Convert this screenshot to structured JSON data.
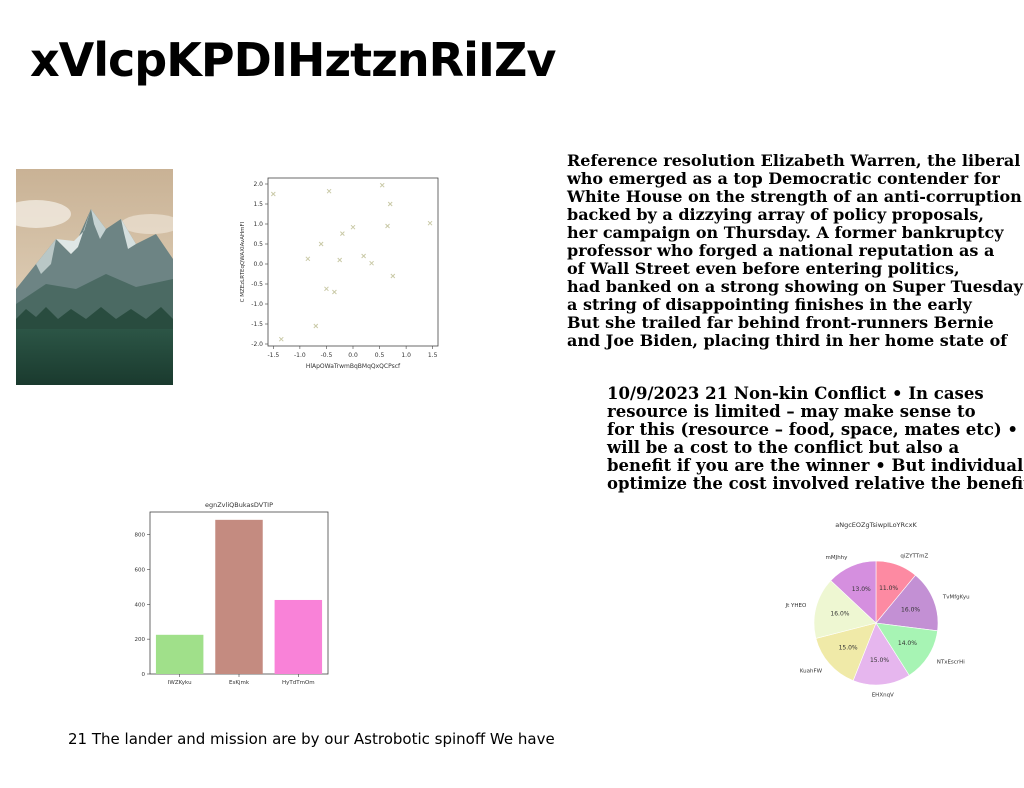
{
  "page": {
    "title": "xVlcpKPDIHztznRiIZv",
    "caption": "21 The lander and mission are by our Astrobotic spinoff We have"
  },
  "text_block_1": [
    "Reference resolution Elizabeth Warren, the liberal",
    "who emerged as a top Democratic contender for",
    "White House on the strength of an anti-corruption",
    "backed by a dizzying array of policy proposals,",
    "her campaign on Thursday. A former bankruptcy",
    "professor who forged a national reputation as a",
    "of Wall Street even before entering politics,",
    "had banked on a strong showing on Super Tuesday",
    "a string of disappointing finishes in the early",
    "But she trailed far behind front-runners Bernie",
    "and Joe Biden, placing third in her home state of"
  ],
  "text_block_2": [
    "10/9/2023 21 Non-kin Conflict • In cases",
    "resource is limited – may make sense to",
    "for this (resource – food, space, mates etc) •",
    "will be a cost to the conflict but also a",
    "benefit if you are the winner • But individuals",
    "optimize the cost involved relative the benefit"
  ],
  "colors": {
    "scatter_marker": "#c9c9a6",
    "bar_colors": [
      "#a0e08a",
      "#c48b80",
      "#f982d8"
    ],
    "pie_colors": [
      "#fd8aa2",
      "#c390d4",
      "#a7f4b4",
      "#e6b6ee",
      "#f0eaa8",
      "#eef7d2",
      "#d58fdf"
    ]
  },
  "chart_data": [
    {
      "type": "scatter",
      "title": "",
      "xlabel": "HlApOWaTrwmBqBMqQxQCPscf",
      "ylabel": "C MZEzLRTEqQWAXIAvAHmFI",
      "xlim": [
        -1.6,
        1.6
      ],
      "ylim": [
        -2.05,
        2.15
      ],
      "xticks": [
        "-1.5",
        "-1.0",
        "-0.5",
        "0.0",
        "0.5",
        "1.0",
        "1.5"
      ],
      "yticks": [
        "2.0",
        "1.5",
        "1.0",
        "0.5",
        "0.0",
        "-0.5",
        "-1.0",
        "-1.5",
        "-2.0"
      ],
      "marker": "x",
      "points": [
        {
          "x": -1.5,
          "y": 1.75
        },
        {
          "x": -0.45,
          "y": 1.82
        },
        {
          "x": 0.55,
          "y": 1.97
        },
        {
          "x": 0.7,
          "y": 1.5
        },
        {
          "x": 1.45,
          "y": 1.02
        },
        {
          "x": 0.65,
          "y": 0.95
        },
        {
          "x": 0.0,
          "y": 0.92
        },
        {
          "x": -0.2,
          "y": 0.76
        },
        {
          "x": -0.6,
          "y": 0.5
        },
        {
          "x": 0.2,
          "y": 0.2
        },
        {
          "x": -0.25,
          "y": 0.1
        },
        {
          "x": -0.85,
          "y": 0.13
        },
        {
          "x": 0.35,
          "y": 0.02
        },
        {
          "x": 0.75,
          "y": -0.3
        },
        {
          "x": -0.5,
          "y": -0.62
        },
        {
          "x": -0.35,
          "y": -0.7
        },
        {
          "x": -0.7,
          "y": -1.55
        },
        {
          "x": -1.35,
          "y": -1.88
        }
      ]
    },
    {
      "type": "bar",
      "title": "egnZvliQBukasDVTIP",
      "categories": [
        "IWZKyku",
        "EsKjmk",
        "HyTdTmOm"
      ],
      "values": [
        225,
        885,
        425
      ],
      "ylim": [
        0,
        930
      ],
      "yticks": [
        0,
        200,
        400,
        600,
        800
      ]
    },
    {
      "type": "pie",
      "title": "aNgcEOZgTsiwpILoYRcxK",
      "slices": [
        {
          "label": "qiZYTTmZ",
          "value": 11.0,
          "pct": "11.0%"
        },
        {
          "label": "TvMfgKyu",
          "value": 16.0,
          "pct": "16.0%"
        },
        {
          "label": "NTxEscrHi",
          "value": 14.0,
          "pct": "14.0%"
        },
        {
          "label": "EHXnqV",
          "value": 15.0,
          "pct": "15.0%"
        },
        {
          "label": "KuahFW",
          "value": 15.0,
          "pct": "15.0%"
        },
        {
          "label": "Jt YHEO",
          "value": 16.0,
          "pct": "16.0%"
        },
        {
          "label": "mMJhhy",
          "value": 13.0,
          "pct": "13.0%"
        }
      ]
    }
  ]
}
